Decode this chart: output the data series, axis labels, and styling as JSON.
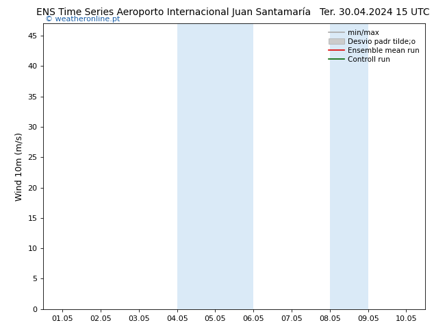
{
  "title_left": "ENS Time Series Aeroporto Internacional Juan Santamaría",
  "title_right": "Ter. 30.04.2024 15 UTC",
  "ylabel": "Wind 10m (m/s)",
  "ylim": [
    0,
    47
  ],
  "yticks": [
    0,
    5,
    10,
    15,
    20,
    25,
    30,
    35,
    40,
    45
  ],
  "xlim_min": -0.5,
  "xlim_max": 9.5,
  "xtick_labels": [
    "01.05",
    "02.05",
    "03.05",
    "04.05",
    "05.05",
    "06.05",
    "07.05",
    "08.05",
    "09.05",
    "10.05"
  ],
  "xtick_positions": [
    0,
    1,
    2,
    3,
    4,
    5,
    6,
    7,
    8,
    9
  ],
  "shaded_bands": [
    {
      "xmin": 3.0,
      "xmax": 5.0
    },
    {
      "xmin": 7.0,
      "xmax": 8.0
    }
  ],
  "band_color": "#daeaf7",
  "background_color": "#ffffff",
  "watermark": "© weatheronline.pt",
  "watermark_color": "#1a5fa8",
  "legend_entries": [
    {
      "label": "min/max",
      "color": "#aaaaaa",
      "type": "line"
    },
    {
      "label": "Desvio padr tilde;o",
      "color": "#cccccc",
      "type": "band"
    },
    {
      "label": "Ensemble mean run",
      "color": "#dd0000",
      "type": "line"
    },
    {
      "label": "Controll run",
      "color": "#006600",
      "type": "line"
    }
  ],
  "title_fontsize": 10,
  "tick_fontsize": 8,
  "ylabel_fontsize": 9,
  "legend_fontsize": 7.5,
  "watermark_fontsize": 8
}
